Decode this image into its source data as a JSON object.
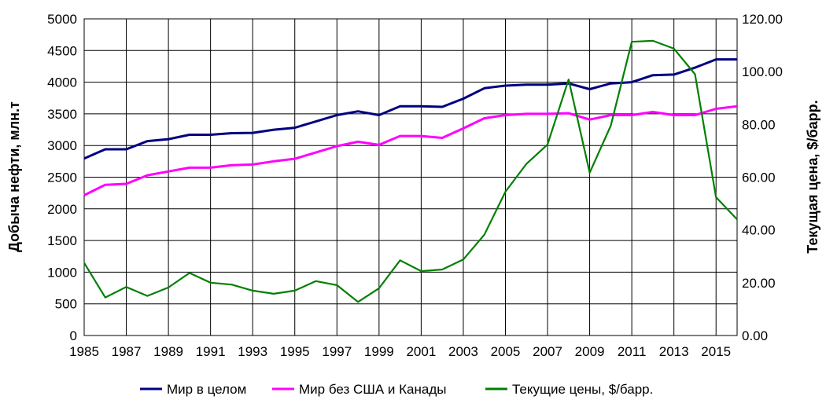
{
  "chart_data": {
    "type": "line",
    "title": "",
    "x": [
      1985,
      1986,
      1987,
      1988,
      1989,
      1990,
      1991,
      1992,
      1993,
      1994,
      1995,
      1996,
      1997,
      1998,
      1999,
      2000,
      2001,
      2002,
      2003,
      2004,
      2005,
      2006,
      2007,
      2008,
      2009,
      2010,
      2011,
      2012,
      2013,
      2014,
      2015,
      2016
    ],
    "x_tick_labels": [
      "1985",
      "1987",
      "1989",
      "1991",
      "1993",
      "1995",
      "1997",
      "1999",
      "2001",
      "2003",
      "2005",
      "2007",
      "2009",
      "2011",
      "2013",
      "2015"
    ],
    "xlim": [
      1985,
      2016
    ],
    "ylabel": "Добыча нефти, млн.т",
    "ylim": [
      0,
      5000
    ],
    "y_ticks": [
      "0",
      "500",
      "1000",
      "1500",
      "2000",
      "2500",
      "3000",
      "3500",
      "4000",
      "4500",
      "5000"
    ],
    "y2label": "Текущая цена, $/барр.",
    "y2lim": [
      0,
      120
    ],
    "y2_ticks": [
      "0.00",
      "20.00",
      "40.00",
      "60.00",
      "80.00",
      "100.00",
      "120.00"
    ],
    "grid": true,
    "legend_position": "bottom",
    "series": [
      {
        "name": "Мир в целом",
        "axis": "left",
        "color": "#000080",
        "values": [
          2795,
          2940,
          2940,
          3070,
          3100,
          3170,
          3170,
          3195,
          3200,
          3250,
          3280,
          3380,
          3480,
          3540,
          3480,
          3620,
          3620,
          3610,
          3740,
          3905,
          3945,
          3960,
          3960,
          3980,
          3890,
          3980,
          4000,
          4110,
          4120,
          4230,
          4360,
          4360
        ]
      },
      {
        "name": "Мир без США и Канады",
        "axis": "left",
        "color": "#ff00ff",
        "values": [
          2215,
          2380,
          2395,
          2530,
          2590,
          2650,
          2650,
          2690,
          2700,
          2750,
          2790,
          2890,
          2990,
          3060,
          3010,
          3150,
          3150,
          3120,
          3270,
          3430,
          3480,
          3500,
          3500,
          3510,
          3410,
          3480,
          3480,
          3530,
          3480,
          3480,
          3580,
          3620
        ]
      },
      {
        "name": "Текущие цены, $/барр.",
        "axis": "right",
        "color": "#008000",
        "values": [
          27.5,
          14.4,
          18.4,
          15.0,
          18.2,
          23.7,
          20.0,
          19.3,
          17.0,
          15.8,
          17.0,
          20.6,
          19.1,
          12.7,
          17.9,
          28.5,
          24.4,
          25.0,
          28.8,
          38.2,
          54.5,
          65.1,
          72.4,
          97.0,
          61.7,
          79.5,
          111.3,
          111.7,
          108.7,
          99.0,
          52.4,
          44.0
        ]
      }
    ]
  }
}
